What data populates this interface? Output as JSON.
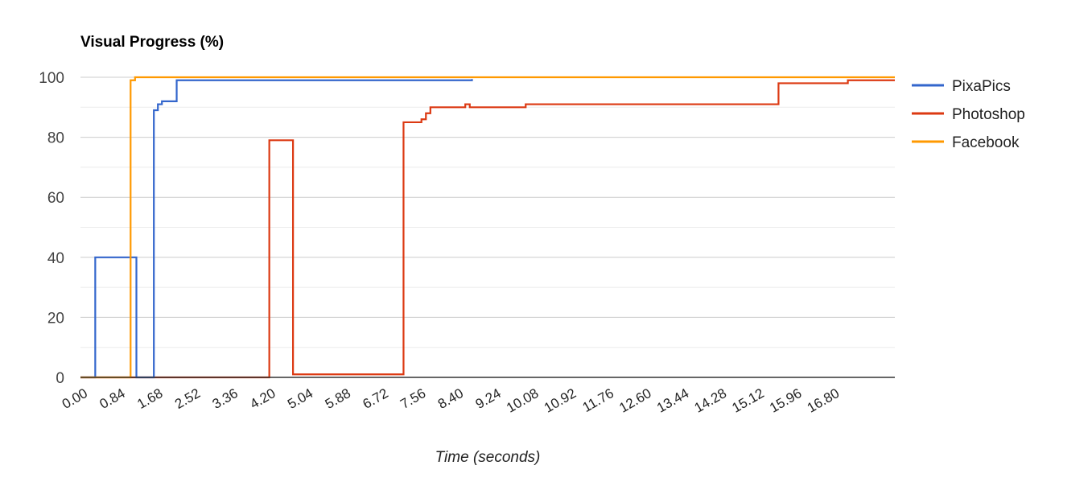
{
  "chart_data": {
    "type": "line",
    "title": "Visual Progress (%)",
    "xlabel": "Time (seconds)",
    "ylabel": "",
    "xlim": [
      0,
      18.2
    ],
    "ylim": [
      0,
      100
    ],
    "y_ticks": [
      0,
      20,
      40,
      60,
      80,
      100
    ],
    "x_ticks": [
      "0.00",
      "0.84",
      "1.68",
      "2.52",
      "3.36",
      "4.20",
      "5.04",
      "5.88",
      "6.72",
      "7.56",
      "8.40",
      "9.24",
      "10.08",
      "10.92",
      "11.76",
      "12.60",
      "13.44",
      "14.28",
      "15.12",
      "15.96",
      "16.80"
    ],
    "grid": true,
    "legend_position": "right",
    "series": [
      {
        "name": "PixaPics",
        "color": "#3366cc",
        "step": true,
        "points": [
          [
            0,
            0
          ],
          [
            0.33,
            0
          ],
          [
            0.33,
            40
          ],
          [
            1.25,
            40
          ],
          [
            1.25,
            0
          ],
          [
            1.64,
            0
          ],
          [
            1.64,
            89
          ],
          [
            1.73,
            89
          ],
          [
            1.73,
            91
          ],
          [
            1.82,
            91
          ],
          [
            1.82,
            92
          ],
          [
            2.15,
            92
          ],
          [
            2.15,
            99
          ],
          [
            8.75,
            99
          ],
          [
            8.75,
            99.4
          ]
        ]
      },
      {
        "name": "Photoshop",
        "color": "#dc3912",
        "step": true,
        "points": [
          [
            0,
            0
          ],
          [
            4.22,
            0
          ],
          [
            4.22,
            79
          ],
          [
            4.75,
            79
          ],
          [
            4.75,
            1
          ],
          [
            7.22,
            1
          ],
          [
            7.22,
            85
          ],
          [
            7.62,
            85
          ],
          [
            7.62,
            86
          ],
          [
            7.72,
            86
          ],
          [
            7.72,
            88
          ],
          [
            7.82,
            88
          ],
          [
            7.82,
            90
          ],
          [
            8.6,
            90
          ],
          [
            8.6,
            91
          ],
          [
            8.7,
            91
          ],
          [
            8.7,
            90
          ],
          [
            9.95,
            90
          ],
          [
            9.95,
            91
          ],
          [
            15.6,
            91
          ],
          [
            15.6,
            98
          ],
          [
            17.15,
            98
          ],
          [
            17.15,
            99
          ],
          [
            18.2,
            99
          ]
        ]
      },
      {
        "name": "Facebook",
        "color": "#ff9900",
        "step": true,
        "points": [
          [
            0,
            0
          ],
          [
            1.12,
            0
          ],
          [
            1.12,
            99
          ],
          [
            1.22,
            99
          ],
          [
            1.22,
            100
          ],
          [
            18.2,
            100
          ]
        ]
      }
    ]
  }
}
